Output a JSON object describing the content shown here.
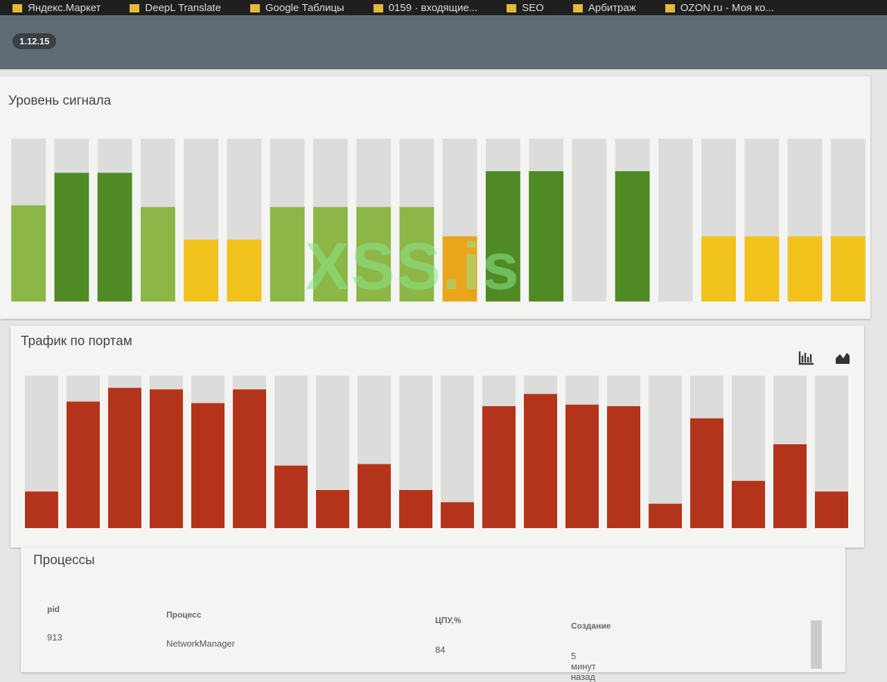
{
  "bookmarks": [
    "Яндекс.Маркет",
    "DeepL Translate",
    "Google Таблицы",
    "0159 · входящие...",
    "SEO",
    "Арбитраж",
    "OZON.ru - Моя ко..."
  ],
  "header": {
    "version": "1.12.15"
  },
  "watermark": "XSS.is",
  "signal": {
    "title": "Уровень сигнала",
    "max": 100,
    "bars": [
      {
        "value": 59,
        "color": "#8cb646"
      },
      {
        "value": 79,
        "color": "#4f8a24"
      },
      {
        "value": 79,
        "color": "#4f8a24"
      },
      {
        "value": 58,
        "color": "#8cb646"
      },
      {
        "value": 38,
        "color": "#f1c21c"
      },
      {
        "value": 38,
        "color": "#f1c21c"
      },
      {
        "value": 58,
        "color": "#8cb646"
      },
      {
        "value": 58,
        "color": "#8cb646"
      },
      {
        "value": 58,
        "color": "#8cb646"
      },
      {
        "value": 58,
        "color": "#8cb646"
      },
      {
        "value": 40,
        "color": "#eba51c"
      },
      {
        "value": 80,
        "color": "#4f8a24"
      },
      {
        "value": 80,
        "color": "#4f8a24"
      },
      {
        "value": 0,
        "color": "#4f8a24"
      },
      {
        "value": 80,
        "color": "#4f8a24"
      },
      {
        "value": 0,
        "color": "#4f8a24"
      },
      {
        "value": 40,
        "color": "#f1c21c"
      },
      {
        "value": 40,
        "color": "#f1c21c"
      },
      {
        "value": 40,
        "color": "#f1c21c"
      },
      {
        "value": 40,
        "color": "#f1c21c"
      }
    ]
  },
  "traffic": {
    "title": "Трафик по портам",
    "max": 100,
    "color": "#b4341b",
    "values": [
      24,
      83,
      92,
      91,
      82,
      91,
      41,
      25,
      42,
      25,
      17,
      80,
      88,
      81,
      80,
      16,
      72,
      31,
      55,
      24
    ]
  },
  "processes": {
    "title": "Процессы",
    "columns": [
      "pid",
      "Процесс",
      "ЦПУ,%",
      "Создание"
    ],
    "rows": [
      [
        "913",
        "NetworkManager",
        "84",
        "5 минут назад"
      ]
    ]
  }
}
